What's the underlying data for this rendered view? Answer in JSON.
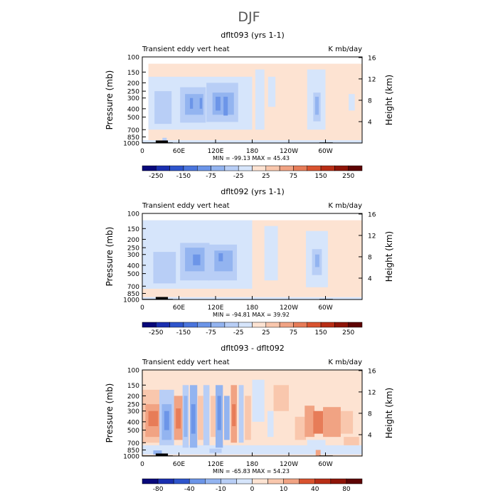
{
  "figure_title": "DJF",
  "colors": {
    "cool": [
      "#08087a",
      "#1a2fb0",
      "#2e55cc",
      "#4a75dd",
      "#6c95e8",
      "#93b4f0",
      "#b8cef6",
      "#d6e5fb"
    ],
    "warm": [
      "#fde3d2",
      "#f9c7ad",
      "#f1a383",
      "#e77c58",
      "#d9532f",
      "#b82d15",
      "#8e1408",
      "#5e0303"
    ],
    "topography": "#000000"
  },
  "chart_data": [
    {
      "type": "heatmap",
      "title": "dflt093 (yrs 1-1)",
      "left_label": "Transient eddy vert heat",
      "right_label": "K mb/day",
      "xlabel": "",
      "ylabel": "Pressure (mb)",
      "y2label": "Height (km)",
      "xticks": [
        "0",
        "60E",
        "120E",
        "180",
        "120W",
        "60W"
      ],
      "xtick_values": [
        0,
        60,
        120,
        180,
        240,
        300
      ],
      "xlim": [
        0,
        360
      ],
      "yticks": [
        "100",
        "150",
        "200",
        "250",
        "300",
        "400",
        "500",
        "700",
        "850",
        "1000"
      ],
      "ytick_values": [
        100,
        150,
        200,
        250,
        300,
        400,
        500,
        700,
        850,
        1000
      ],
      "ylim": [
        100,
        1000
      ],
      "y2ticks": [
        "16",
        "12",
        "8",
        "4"
      ],
      "y2tick_values": [
        16,
        12,
        8,
        4
      ],
      "min_max": "MIN = -99.13   MAX =  45.43",
      "colorbar_labels": [
        "-250",
        "-150",
        "-75",
        "-25",
        "25",
        "75",
        "150",
        "250"
      ],
      "colorbar_levels": [
        -300,
        -250,
        -200,
        -150,
        -100,
        -75,
        -50,
        -25,
        0,
        25,
        50,
        75,
        100,
        150,
        200,
        250,
        300
      ],
      "cells": [
        {
          "lon": [
            10,
            360
          ],
          "p": [
            120,
            930
          ],
          "level": 1
        },
        {
          "lon": [
            10,
            180
          ],
          "p": [
            170,
            700
          ],
          "level": -1
        },
        {
          "lon": [
            185,
            200
          ],
          "p": [
            140,
            700
          ],
          "level": -1
        },
        {
          "lon": [
            206,
            218
          ],
          "p": [
            170,
            380
          ],
          "level": -1
        },
        {
          "lon": [
            270,
            300
          ],
          "p": [
            140,
            700
          ],
          "level": -1
        },
        {
          "lon": [
            338,
            348
          ],
          "p": [
            270,
            420
          ],
          "level": -1
        },
        {
          "lon": [
            20,
            48
          ],
          "p": [
            250,
            600
          ],
          "level": -2
        },
        {
          "lon": [
            62,
            104
          ],
          "p": [
            225,
            580
          ],
          "level": -2
        },
        {
          "lon": [
            105,
            157
          ],
          "p": [
            200,
            570
          ],
          "level": -2
        },
        {
          "lon": [
            280,
            292
          ],
          "p": [
            260,
            560
          ],
          "level": -2
        },
        {
          "lon": [
            70,
            100
          ],
          "p": [
            270,
            470
          ],
          "level": -3
        },
        {
          "lon": [
            115,
            150
          ],
          "p": [
            260,
            470
          ],
          "level": -3
        },
        {
          "lon": [
            283,
            289
          ],
          "p": [
            290,
            470
          ],
          "level": -3
        },
        {
          "lon": [
            78,
            83
          ],
          "p": [
            300,
            400
          ],
          "level": -4
        },
        {
          "lon": [
            94,
            98
          ],
          "p": [
            300,
            400
          ],
          "level": -4
        },
        {
          "lon": [
            120,
            128
          ],
          "p": [
            290,
            420
          ],
          "level": -4
        },
        {
          "lon": [
            133,
            140
          ],
          "p": [
            290,
            480
          ],
          "level": -4
        },
        {
          "lon": [
            0,
            360
          ],
          "p": [
            930,
            1000
          ],
          "level": -1
        },
        {
          "lon": [
            33,
            40
          ],
          "p": [
            870,
            1000
          ],
          "level": -2
        }
      ],
      "topography": [
        {
          "lon": [
            0,
            22
          ],
          "p": 985
        },
        {
          "lon": [
            22,
            42
          ],
          "p": 935
        },
        {
          "lon": [
            42,
            50
          ],
          "p": 985
        },
        {
          "lon": [
            240,
            256
          ],
          "p": 992
        },
        {
          "lon": [
            290,
            312
          ],
          "p": 985
        }
      ]
    },
    {
      "type": "heatmap",
      "title": "dflt092 (yrs 1-1)",
      "left_label": "Transient eddy vert heat",
      "right_label": "K mb/day",
      "xlabel": "",
      "ylabel": "Pressure (mb)",
      "y2label": "Height (km)",
      "xticks": [
        "0",
        "60E",
        "120E",
        "180",
        "120W",
        "60W"
      ],
      "xtick_values": [
        0,
        60,
        120,
        180,
        240,
        300
      ],
      "xlim": [
        0,
        360
      ],
      "yticks": [
        "100",
        "150",
        "200",
        "250",
        "300",
        "400",
        "500",
        "700",
        "850",
        "1000"
      ],
      "ytick_values": [
        100,
        150,
        200,
        250,
        300,
        400,
        500,
        700,
        850,
        1000
      ],
      "ylim": [
        100,
        1000
      ],
      "y2ticks": [
        "16",
        "12",
        "8",
        "4"
      ],
      "y2tick_values": [
        16,
        12,
        8,
        4
      ],
      "min_max": "MIN = -94.81   MAX =  39.92",
      "colorbar_labels": [
        "-250",
        "-150",
        "-75",
        "-25",
        "25",
        "75",
        "150",
        "250"
      ],
      "colorbar_levels": [
        -300,
        -250,
        -200,
        -150,
        -100,
        -75,
        -50,
        -25,
        0,
        25,
        50,
        75,
        100,
        150,
        200,
        250,
        300
      ],
      "cells": [
        {
          "lon": [
            0,
            360
          ],
          "p": [
            120,
            940
          ],
          "level": 1
        },
        {
          "lon": [
            0,
            180
          ],
          "p": [
            120,
            750
          ],
          "level": -1
        },
        {
          "lon": [
            200,
            222
          ],
          "p": [
            140,
            600
          ],
          "level": -1
        },
        {
          "lon": [
            268,
            304
          ],
          "p": [
            160,
            720
          ],
          "level": -1
        },
        {
          "lon": [
            18,
            55
          ],
          "p": [
            280,
            650
          ],
          "level": -2
        },
        {
          "lon": [
            62,
            110
          ],
          "p": [
            220,
            600
          ],
          "level": -2
        },
        {
          "lon": [
            108,
            155
          ],
          "p": [
            230,
            600
          ],
          "level": -2
        },
        {
          "lon": [
            278,
            294
          ],
          "p": [
            260,
            520
          ],
          "level": -2
        },
        {
          "lon": [
            70,
            102
          ],
          "p": [
            250,
            470
          ],
          "level": -3
        },
        {
          "lon": [
            118,
            148
          ],
          "p": [
            270,
            470
          ],
          "level": -3
        },
        {
          "lon": [
            283,
            290
          ],
          "p": [
            300,
            420
          ],
          "level": -3
        },
        {
          "lon": [
            83,
            95
          ],
          "p": [
            300,
            400
          ],
          "level": -4
        },
        {
          "lon": [
            125,
            132
          ],
          "p": [
            290,
            360
          ],
          "level": -4
        },
        {
          "lon": [
            0,
            360
          ],
          "p": [
            940,
            1000
          ],
          "level": -1
        }
      ],
      "topography": [
        {
          "lon": [
            0,
            22
          ],
          "p": 985
        },
        {
          "lon": [
            22,
            42
          ],
          "p": 935
        },
        {
          "lon": [
            42,
            50
          ],
          "p": 985
        },
        {
          "lon": [
            240,
            256
          ],
          "p": 992
        },
        {
          "lon": [
            290,
            312
          ],
          "p": 985
        }
      ]
    },
    {
      "type": "heatmap",
      "title": "dflt093 - dflt092",
      "left_label": "Transient eddy vert heat",
      "right_label": "K mb/day",
      "xlabel": "",
      "ylabel": "Pressure (mb)",
      "y2label": "Height (km)",
      "xticks": [
        "0",
        "60E",
        "120E",
        "180",
        "120W",
        "60W"
      ],
      "xtick_values": [
        0,
        60,
        120,
        180,
        240,
        300
      ],
      "xlim": [
        0,
        360
      ],
      "yticks": [
        "100",
        "150",
        "200",
        "250",
        "300",
        "400",
        "500",
        "700",
        "850",
        "1000"
      ],
      "ytick_values": [
        100,
        150,
        200,
        250,
        300,
        400,
        500,
        700,
        850,
        1000
      ],
      "ylim": [
        100,
        1000
      ],
      "y2ticks": [
        "16",
        "12",
        "8",
        "4"
      ],
      "y2tick_values": [
        16,
        12,
        8,
        4
      ],
      "min_max": "MIN = -65.83   MAX =  54.23",
      "colorbar_labels": [
        "-80",
        "-40",
        "-10",
        "0",
        "10",
        "40",
        "80"
      ],
      "colorbar_levels": [
        -100,
        -80,
        -60,
        -40,
        -20,
        -10,
        -5,
        0,
        5,
        10,
        20,
        40,
        60,
        80,
        100
      ],
      "cells": [
        {
          "lon": [
            0,
            360
          ],
          "p": [
            100,
            1000
          ],
          "level": 1
        },
        {
          "lon": [
            0,
            360
          ],
          "p": [
            750,
            960
          ],
          "level": -1
        },
        {
          "lon": [
            0,
            36
          ],
          "p": [
            170,
            700
          ],
          "level": 2
        },
        {
          "lon": [
            5,
            30
          ],
          "p": [
            250,
            600
          ],
          "level": 3
        },
        {
          "lon": [
            10,
            26
          ],
          "p": [
            300,
            450
          ],
          "level": 4
        },
        {
          "lon": [
            28,
            52
          ],
          "p": [
            170,
            750
          ],
          "level": -2
        },
        {
          "lon": [
            32,
            48
          ],
          "p": [
            250,
            650
          ],
          "level": -3
        },
        {
          "lon": [
            36,
            44
          ],
          "p": [
            300,
            500
          ],
          "level": -4
        },
        {
          "lon": [
            52,
            66
          ],
          "p": [
            200,
            650
          ],
          "level": 3
        },
        {
          "lon": [
            55,
            63
          ],
          "p": [
            280,
            480
          ],
          "level": 4
        },
        {
          "lon": [
            66,
            76
          ],
          "p": [
            150,
            800
          ],
          "level": -2
        },
        {
          "lon": [
            68,
            74
          ],
          "p": [
            200,
            600
          ],
          "level": -3
        },
        {
          "lon": [
            78,
            90
          ],
          "p": [
            150,
            800
          ],
          "level": -3
        },
        {
          "lon": [
            80,
            87
          ],
          "p": [
            250,
            550
          ],
          "level": -4
        },
        {
          "lon": [
            91,
            100
          ],
          "p": [
            200,
            650
          ],
          "level": 2
        },
        {
          "lon": [
            100,
            110
          ],
          "p": [
            150,
            750
          ],
          "level": -2
        },
        {
          "lon": [
            112,
            121
          ],
          "p": [
            200,
            600
          ],
          "level": 2
        },
        {
          "lon": [
            120,
            132
          ],
          "p": [
            150,
            800
          ],
          "level": -3
        },
        {
          "lon": [
            123,
            129
          ],
          "p": [
            200,
            500
          ],
          "level": -4
        },
        {
          "lon": [
            134,
            143
          ],
          "p": [
            200,
            650
          ],
          "level": -3
        },
        {
          "lon": [
            145,
            155
          ],
          "p": [
            150,
            700
          ],
          "level": 3
        },
        {
          "lon": [
            147,
            153
          ],
          "p": [
            250,
            450
          ],
          "level": 4
        },
        {
          "lon": [
            158,
            166
          ],
          "p": [
            150,
            700
          ],
          "level": -2
        },
        {
          "lon": [
            168,
            178
          ],
          "p": [
            200,
            650
          ],
          "level": 2
        },
        {
          "lon": [
            180,
            200
          ],
          "p": [
            130,
            400
          ],
          "level": -1
        },
        {
          "lon": [
            205,
            215
          ],
          "p": [
            300,
            600
          ],
          "level": -1
        },
        {
          "lon": [
            215,
            240
          ],
          "p": [
            150,
            300
          ],
          "level": 2
        },
        {
          "lon": [
            250,
            268
          ],
          "p": [
            350,
            650
          ],
          "level": 2
        },
        {
          "lon": [
            266,
            282
          ],
          "p": [
            260,
            600
          ],
          "level": 3
        },
        {
          "lon": [
            280,
            296
          ],
          "p": [
            300,
            550
          ],
          "level": 4
        },
        {
          "lon": [
            296,
            325
          ],
          "p": [
            270,
            600
          ],
          "level": 3
        },
        {
          "lon": [
            325,
            345
          ],
          "p": [
            300,
            550
          ],
          "level": 2
        },
        {
          "lon": [
            270,
            300
          ],
          "p": [
            650,
            800
          ],
          "level": -1
        },
        {
          "lon": [
            330,
            355
          ],
          "p": [
            600,
            750
          ],
          "level": 2
        },
        {
          "lon": [
            18,
            32
          ],
          "p": [
            860,
            960
          ],
          "level": -3
        },
        {
          "lon": [
            110,
            130
          ],
          "p": [
            820,
            920
          ],
          "level": -2
        },
        {
          "lon": [
            284,
            292
          ],
          "p": [
            850,
            990
          ],
          "level": 3
        }
      ],
      "topography": [
        {
          "lon": [
            0,
            22
          ],
          "p": 985
        },
        {
          "lon": [
            22,
            42
          ],
          "p": 935
        },
        {
          "lon": [
            42,
            50
          ],
          "p": 985
        },
        {
          "lon": [
            240,
            256
          ],
          "p": 992
        },
        {
          "lon": [
            290,
            312
          ],
          "p": 985
        }
      ]
    }
  ]
}
